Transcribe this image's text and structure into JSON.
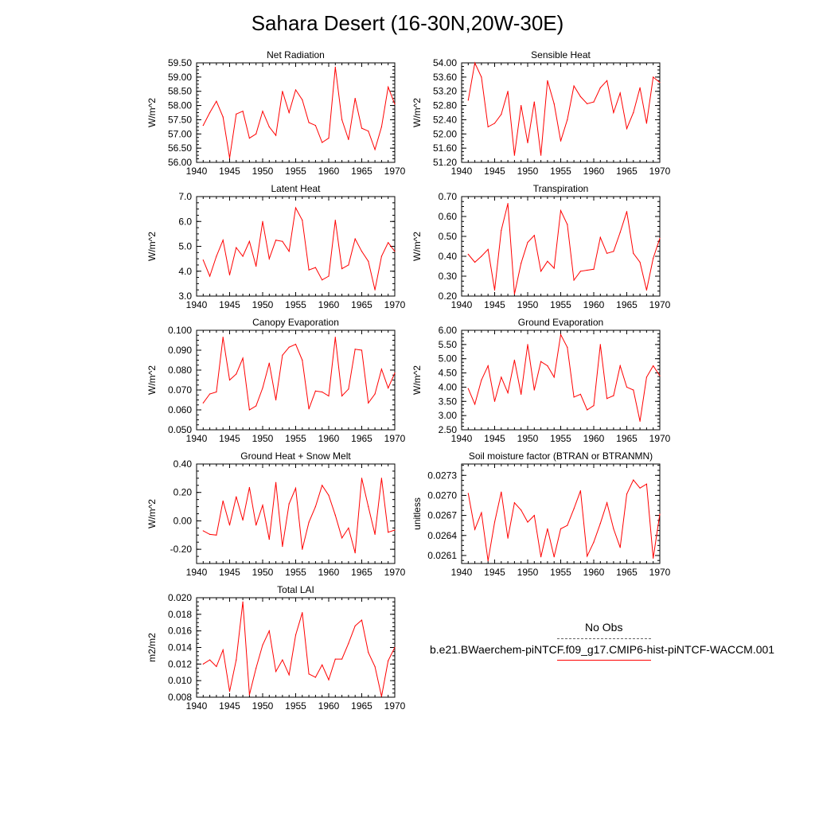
{
  "title": "Sahara Desert (16-30N,20W-30E)",
  "legend": {
    "obs_label": "No Obs",
    "run_label": "b.e21.BWaerchem-piNTCF.f09_g17.CMIP6-hist-piNTCF-WACCM.001"
  },
  "colors": {
    "series": "#ff0000",
    "obs": "#666666"
  },
  "chart_data": [
    {
      "type": "line",
      "title": "Net Radiation",
      "ylabel": "W/m^2",
      "xlim": [
        1940,
        1970
      ],
      "ylim": [
        56.0,
        59.5
      ],
      "xticks": [
        "1940",
        "1945",
        "1950",
        "1955",
        "1960",
        "1965",
        "1970"
      ],
      "yticks": [
        "56.00",
        "56.50",
        "57.00",
        "57.50",
        "58.00",
        "58.50",
        "59.00",
        "59.50"
      ],
      "x": [
        1941,
        1942,
        1943,
        1944,
        1945,
        1946,
        1947,
        1948,
        1949,
        1950,
        1951,
        1952,
        1953,
        1954,
        1955,
        1956,
        1957,
        1958,
        1959,
        1960,
        1961,
        1962,
        1963,
        1964,
        1965,
        1966,
        1967,
        1968,
        1969,
        1970
      ],
      "values": [
        57.3,
        57.75,
        58.15,
        57.6,
        56.15,
        57.7,
        57.8,
        56.85,
        57.0,
        57.8,
        57.25,
        56.95,
        58.5,
        57.75,
        58.55,
        58.2,
        57.4,
        57.3,
        56.7,
        56.85,
        59.35,
        57.5,
        56.8,
        58.25,
        57.2,
        57.1,
        56.45,
        57.25,
        58.65,
        58.05
      ]
    },
    {
      "type": "line",
      "title": "Sensible Heat",
      "ylabel": "W/m^2",
      "xlim": [
        1940,
        1970
      ],
      "ylim": [
        51.2,
        54.0
      ],
      "xticks": [
        "1940",
        "1945",
        "1950",
        "1955",
        "1960",
        "1965",
        "1970"
      ],
      "yticks": [
        "51.20",
        "51.60",
        "52.00",
        "52.40",
        "52.80",
        "53.20",
        "53.60",
        "54.00"
      ],
      "x": [
        1941,
        1942,
        1943,
        1944,
        1945,
        1946,
        1947,
        1948,
        1949,
        1950,
        1951,
        1952,
        1953,
        1954,
        1955,
        1956,
        1957,
        1958,
        1959,
        1960,
        1961,
        1962,
        1963,
        1964,
        1965,
        1966,
        1967,
        1968,
        1969,
        1970
      ],
      "values": [
        52.95,
        54.0,
        53.6,
        52.2,
        52.3,
        52.55,
        53.2,
        51.4,
        52.8,
        51.75,
        52.9,
        51.4,
        53.5,
        52.85,
        51.8,
        52.4,
        53.35,
        53.05,
        52.85,
        52.9,
        53.3,
        53.5,
        52.6,
        53.15,
        52.15,
        52.6,
        53.3,
        52.3,
        53.6,
        53.45
      ]
    },
    {
      "type": "line",
      "title": "Latent Heat",
      "ylabel": "W/m^2",
      "xlim": [
        1940,
        1970
      ],
      "ylim": [
        3.0,
        7.0
      ],
      "xticks": [
        "1940",
        "1945",
        "1950",
        "1955",
        "1960",
        "1965",
        "1970"
      ],
      "yticks": [
        "3.0",
        "4.0",
        "5.0",
        "6.0",
        "7.0"
      ],
      "x": [
        1941,
        1942,
        1943,
        1944,
        1945,
        1946,
        1947,
        1948,
        1949,
        1950,
        1951,
        1952,
        1953,
        1954,
        1955,
        1956,
        1957,
        1958,
        1959,
        1960,
        1961,
        1962,
        1963,
        1964,
        1965,
        1966,
        1967,
        1968,
        1969,
        1970
      ],
      "values": [
        4.45,
        3.8,
        4.6,
        5.25,
        3.85,
        4.95,
        4.6,
        5.2,
        4.2,
        6.0,
        4.5,
        5.25,
        5.2,
        4.8,
        6.55,
        6.05,
        4.05,
        4.15,
        3.65,
        3.8,
        6.05,
        4.1,
        4.25,
        5.3,
        4.8,
        4.4,
        3.25,
        4.6,
        5.15,
        4.8
      ]
    },
    {
      "type": "line",
      "title": "Transpiration",
      "ylabel": "W/m^2",
      "xlim": [
        1940,
        1970
      ],
      "ylim": [
        0.2,
        0.7
      ],
      "xticks": [
        "1940",
        "1945",
        "1950",
        "1955",
        "1960",
        "1965",
        "1970"
      ],
      "yticks": [
        "0.20",
        "0.30",
        "0.40",
        "0.50",
        "0.60",
        "0.70"
      ],
      "x": [
        1941,
        1942,
        1943,
        1944,
        1945,
        1946,
        1947,
        1948,
        1949,
        1950,
        1951,
        1952,
        1953,
        1954,
        1955,
        1956,
        1957,
        1958,
        1959,
        1960,
        1961,
        1962,
        1963,
        1964,
        1965,
        1966,
        1967,
        1968,
        1969,
        1970
      ],
      "values": [
        0.41,
        0.37,
        0.4,
        0.435,
        0.23,
        0.53,
        0.665,
        0.21,
        0.365,
        0.47,
        0.505,
        0.325,
        0.375,
        0.34,
        0.63,
        0.56,
        0.28,
        0.325,
        0.33,
        0.335,
        0.495,
        0.415,
        0.425,
        0.52,
        0.625,
        0.415,
        0.37,
        0.23,
        0.39,
        0.49
      ]
    },
    {
      "type": "line",
      "title": "Canopy Evaporation",
      "ylabel": "W/m^2",
      "xlim": [
        1940,
        1970
      ],
      "ylim": [
        0.05,
        0.1
      ],
      "xticks": [
        "1940",
        "1945",
        "1950",
        "1955",
        "1960",
        "1965",
        "1970"
      ],
      "yticks": [
        "0.050",
        "0.060",
        "0.070",
        "0.080",
        "0.090",
        "0.100"
      ],
      "x": [
        1941,
        1942,
        1943,
        1944,
        1945,
        1946,
        1947,
        1948,
        1949,
        1950,
        1951,
        1952,
        1953,
        1954,
        1955,
        1956,
        1957,
        1958,
        1959,
        1960,
        1961,
        1962,
        1963,
        1964,
        1965,
        1966,
        1967,
        1968,
        1969,
        1970
      ],
      "values": [
        0.0635,
        0.068,
        0.069,
        0.0965,
        0.075,
        0.078,
        0.086,
        0.06,
        0.062,
        0.071,
        0.0835,
        0.065,
        0.0875,
        0.0915,
        0.093,
        0.085,
        0.0605,
        0.0695,
        0.069,
        0.067,
        0.0965,
        0.067,
        0.0705,
        0.0905,
        0.09,
        0.0635,
        0.068,
        0.0805,
        0.071,
        0.0785
      ]
    },
    {
      "type": "line",
      "title": "Ground Evaporation",
      "ylabel": "W/m^2",
      "xlim": [
        1940,
        1970
      ],
      "ylim": [
        2.5,
        6.0
      ],
      "xticks": [
        "1940",
        "1945",
        "1950",
        "1955",
        "1960",
        "1965",
        "1970"
      ],
      "yticks": [
        "2.50",
        "3.00",
        "3.50",
        "4.00",
        "4.50",
        "5.00",
        "5.50",
        "6.00"
      ],
      "x": [
        1941,
        1942,
        1943,
        1944,
        1945,
        1946,
        1947,
        1948,
        1949,
        1950,
        1951,
        1952,
        1953,
        1954,
        1955,
        1956,
        1957,
        1958,
        1959,
        1960,
        1961,
        1962,
        1963,
        1964,
        1965,
        1966,
        1967,
        1968,
        1969,
        1970
      ],
      "values": [
        3.95,
        3.4,
        4.25,
        4.75,
        3.5,
        4.35,
        3.8,
        4.95,
        3.75,
        5.5,
        3.9,
        4.9,
        4.75,
        4.35,
        5.85,
        5.4,
        3.65,
        3.75,
        3.2,
        3.35,
        5.5,
        3.6,
        3.7,
        4.75,
        4.0,
        3.9,
        2.8,
        4.35,
        4.75,
        4.4
      ]
    },
    {
      "type": "line",
      "title": "Ground Heat + Snow Melt",
      "ylabel": "W/m^2",
      "xlim": [
        1940,
        1970
      ],
      "ylim": [
        -0.3,
        0.4
      ],
      "xticks": [
        "1940",
        "1945",
        "1950",
        "1955",
        "1960",
        "1965",
        "1970"
      ],
      "yticks": [
        "-0.20",
        "0.00",
        "0.20",
        "0.40"
      ],
      "ytickvals": [
        -0.2,
        0.0,
        0.2,
        0.4
      ],
      "x": [
        1941,
        1942,
        1943,
        1944,
        1945,
        1946,
        1947,
        1948,
        1949,
        1950,
        1951,
        1952,
        1953,
        1954,
        1955,
        1956,
        1957,
        1958,
        1959,
        1960,
        1961,
        1962,
        1963,
        1964,
        1965,
        1966,
        1967,
        1968,
        1969,
        1970
      ],
      "values": [
        -0.07,
        -0.095,
        -0.1,
        0.14,
        -0.03,
        0.17,
        0.005,
        0.235,
        -0.03,
        0.11,
        -0.13,
        0.27,
        -0.18,
        0.12,
        0.23,
        -0.2,
        -0.01,
        0.1,
        0.25,
        0.18,
        0.04,
        -0.12,
        -0.05,
        -0.225,
        0.3,
        0.1,
        -0.095,
        0.3,
        -0.08,
        -0.065
      ]
    },
    {
      "type": "line",
      "title": "Soil moisture factor (BTRAN or BTRANMN)",
      "ylabel": "unitless",
      "xlim": [
        1940,
        1970
      ],
      "ylim": [
        0.02598,
        0.02747
      ],
      "xticks": [
        "1940",
        "1945",
        "1950",
        "1955",
        "1960",
        "1965",
        "1970"
      ],
      "yticks": [
        "0.0261",
        "0.0264",
        "0.0267",
        "0.0270",
        "0.0273"
      ],
      "ytickvals": [
        0.0261,
        0.0264,
        0.0267,
        0.027,
        0.0273
      ],
      "x": [
        1941,
        1942,
        1943,
        1944,
        1945,
        1946,
        1947,
        1948,
        1949,
        1950,
        1951,
        1952,
        1953,
        1954,
        1955,
        1956,
        1957,
        1958,
        1959,
        1960,
        1961,
        1962,
        1963,
        1964,
        1965,
        1966,
        1967,
        1968,
        1969,
        1970
      ],
      "values": [
        0.02703,
        0.02649,
        0.02674,
        0.02602,
        0.0266,
        0.02705,
        0.02636,
        0.02689,
        0.02678,
        0.0266,
        0.0267,
        0.02608,
        0.0265,
        0.02608,
        0.0265,
        0.02655,
        0.0268,
        0.02707,
        0.02609,
        0.0263,
        0.02658,
        0.02689,
        0.0265,
        0.02622,
        0.02702,
        0.02723,
        0.02711,
        0.02717,
        0.02606,
        0.02672
      ]
    },
    {
      "type": "line",
      "title": "Total LAI",
      "ylabel": "m2/m2",
      "xlim": [
        1940,
        1970
      ],
      "ylim": [
        0.008,
        0.02
      ],
      "xticks": [
        "1940",
        "1945",
        "1950",
        "1955",
        "1960",
        "1965",
        "1970"
      ],
      "yticks": [
        "0.008",
        "0.010",
        "0.012",
        "0.014",
        "0.016",
        "0.018",
        "0.020"
      ],
      "x": [
        1941,
        1942,
        1943,
        1944,
        1945,
        1946,
        1947,
        1948,
        1949,
        1950,
        1951,
        1952,
        1953,
        1954,
        1955,
        1956,
        1957,
        1958,
        1959,
        1960,
        1961,
        1962,
        1963,
        1964,
        1965,
        1966,
        1967,
        1968,
        1969,
        1970
      ],
      "values": [
        0.012,
        0.0125,
        0.0117,
        0.0137,
        0.0087,
        0.0125,
        0.0195,
        0.0083,
        0.0115,
        0.0143,
        0.016,
        0.0111,
        0.0125,
        0.0107,
        0.0155,
        0.0182,
        0.0108,
        0.0104,
        0.0119,
        0.0101,
        0.0126,
        0.0126,
        0.0145,
        0.0166,
        0.0173,
        0.0134,
        0.0117,
        0.0081,
        0.0124,
        0.014
      ]
    }
  ]
}
